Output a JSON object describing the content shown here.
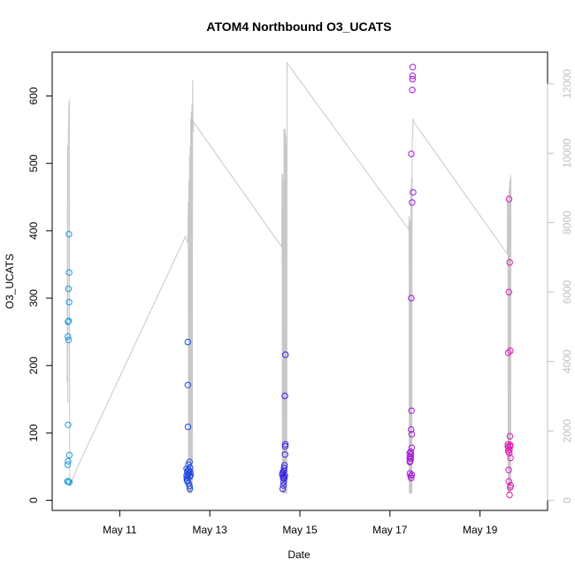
{
  "chart_data": {
    "type": "scatter",
    "title": "ATOM4 Northbound O3_UCATS",
    "xlabel": "Date",
    "ylabel": "O3_UCATS",
    "x_ticks": [
      "May 11",
      "May 13",
      "May 15",
      "May 17",
      "May 19"
    ],
    "y_ticks": [
      "0",
      "100",
      "200",
      "300",
      "400",
      "500",
      "600"
    ],
    "y2_ticks": [
      "0",
      "2000",
      "4000",
      "6000",
      "8000",
      "10000",
      "12000"
    ],
    "xlim": [
      "2018-05-09T12:00",
      "2018-05-20T12:00"
    ],
    "ylim": [
      -15,
      665
    ],
    "y2lim": [
      -290,
      12910
    ],
    "grid": false,
    "legend": "none",
    "colors": {
      "flight_path": "#c8c8c8",
      "right_axis": "#bfbfbf",
      "point_ramp": [
        "#1e9be0",
        "#1f4fdc",
        "#3a1fe6",
        "#9a18e0",
        "#e01ab6"
      ]
    },
    "series": [
      {
        "role": "altitude (right axis)",
        "points": [
          [
            "2018-05-09T20:00",
            3400
          ],
          [
            "2018-05-09T20:10",
            10200
          ],
          [
            "2018-05-09T20:20",
            2800
          ],
          [
            "2018-05-09T20:35",
            10400
          ],
          [
            "2018-05-09T20:50",
            11300
          ],
          [
            "2018-05-09T21:05",
            11550
          ],
          [
            "2018-05-09T21:20",
            400
          ],
          [
            "2018-05-10T01:00",
            900
          ],
          [
            "2018-05-12T11:00",
            7600
          ],
          [
            "2018-05-12T12:20",
            7400
          ],
          [
            "2018-05-12T12:30",
            8600
          ],
          [
            "2018-05-12T12:40",
            200
          ],
          [
            "2018-05-12T12:50",
            9200
          ],
          [
            "2018-05-12T13:00",
            200
          ],
          [
            "2018-05-12T13:10",
            9900
          ],
          [
            "2018-05-12T13:20",
            200
          ],
          [
            "2018-05-12T13:30",
            10200
          ],
          [
            "2018-05-12T13:40",
            200
          ],
          [
            "2018-05-12T13:50",
            11000
          ],
          [
            "2018-05-12T14:00",
            200
          ],
          [
            "2018-05-12T14:10",
            11200
          ],
          [
            "2018-05-12T14:20",
            200
          ],
          [
            "2018-05-12T14:30",
            11400
          ],
          [
            "2018-05-12T14:40",
            300
          ],
          [
            "2018-05-12T14:50",
            12100
          ],
          [
            "2018-05-12T15:05",
            10600
          ],
          [
            "2018-05-12T15:20",
            10900
          ],
          [
            "2018-05-14T14:20",
            7300
          ],
          [
            "2018-05-14T14:30",
            9400
          ],
          [
            "2018-05-14T14:40",
            200
          ],
          [
            "2018-05-14T14:50",
            9400
          ],
          [
            "2018-05-14T15:00",
            200
          ],
          [
            "2018-05-14T15:10",
            9200
          ],
          [
            "2018-05-14T15:20",
            200
          ],
          [
            "2018-05-14T15:30",
            10700
          ],
          [
            "2018-05-14T15:40",
            200
          ],
          [
            "2018-05-14T15:50",
            10700
          ],
          [
            "2018-05-14T16:00",
            200
          ],
          [
            "2018-05-14T16:10",
            10700
          ],
          [
            "2018-05-14T16:20",
            200
          ],
          [
            "2018-05-14T16:30",
            10500
          ],
          [
            "2018-05-14T16:40",
            200
          ],
          [
            "2018-05-14T16:50",
            10300
          ],
          [
            "2018-05-14T17:00",
            200
          ],
          [
            "2018-05-14T17:10",
            12600
          ],
          [
            "2018-05-17T10:00",
            7800
          ],
          [
            "2018-05-17T10:10",
            8200
          ],
          [
            "2018-05-17T10:20",
            200
          ],
          [
            "2018-05-17T10:30",
            8100
          ],
          [
            "2018-05-17T10:40",
            200
          ],
          [
            "2018-05-17T10:50",
            8000
          ],
          [
            "2018-05-17T11:00",
            200
          ],
          [
            "2018-05-17T11:10",
            9000
          ],
          [
            "2018-05-17T11:20",
            200
          ],
          [
            "2018-05-17T11:30",
            9300
          ],
          [
            "2018-05-17T11:40",
            200
          ],
          [
            "2018-05-17T11:50",
            10300
          ],
          [
            "2018-05-17T12:05",
            10500
          ],
          [
            "2018-05-17T12:20",
            11000
          ],
          [
            "2018-05-17T12:40",
            10900
          ],
          [
            "2018-05-19T14:30",
            7100
          ],
          [
            "2018-05-19T14:40",
            8800
          ],
          [
            "2018-05-19T14:50",
            8500
          ],
          [
            "2018-05-19T15:00",
            200
          ],
          [
            "2018-05-19T15:10",
            8600
          ],
          [
            "2018-05-19T15:20",
            200
          ],
          [
            "2018-05-19T15:30",
            9000
          ],
          [
            "2018-05-19T15:40",
            200
          ],
          [
            "2018-05-19T15:50",
            9200
          ],
          [
            "2018-05-19T16:00",
            200
          ],
          [
            "2018-05-19T16:10",
            9400
          ],
          [
            "2018-05-19T16:20",
            300
          ],
          [
            "2018-05-19T16:30",
            9300
          ]
        ]
      },
      {
        "role": "O3_UCATS (left axis)",
        "points": [
          [
            "2018-05-09T20:10",
            28
          ],
          [
            "2018-05-09T20:15",
            53
          ],
          [
            "2018-05-09T20:20",
            243
          ],
          [
            "2018-05-09T20:25",
            265
          ],
          [
            "2018-05-09T20:30",
            58
          ],
          [
            "2018-05-09T20:30",
            28
          ],
          [
            "2018-05-09T20:30",
            112
          ],
          [
            "2018-05-09T20:40",
            314
          ],
          [
            "2018-05-09T20:45",
            238
          ],
          [
            "2018-05-09T20:45",
            266
          ],
          [
            "2018-05-09T20:55",
            395
          ],
          [
            "2018-05-09T21:00",
            338
          ],
          [
            "2018-05-09T21:00",
            294
          ],
          [
            "2018-05-09T21:10",
            67
          ],
          [
            "2018-05-09T21:10",
            27
          ],
          [
            "2018-05-12T11:40",
            47
          ],
          [
            "2018-05-12T11:40",
            37
          ],
          [
            "2018-05-12T11:45",
            33
          ],
          [
            "2018-05-12T11:50",
            30
          ],
          [
            "2018-05-12T12:00",
            42
          ],
          [
            "2018-05-12T12:05",
            28
          ],
          [
            "2018-05-12T12:10",
            35
          ],
          [
            "2018-05-12T12:15",
            235
          ],
          [
            "2018-05-12T12:15",
            171
          ],
          [
            "2018-05-12T12:25",
            109
          ],
          [
            "2018-05-12T12:25",
            45
          ],
          [
            "2018-05-12T12:30",
            38
          ],
          [
            "2018-05-12T12:40",
            53
          ],
          [
            "2018-05-12T12:45",
            25
          ],
          [
            "2018-05-12T12:50",
            40
          ],
          [
            "2018-05-12T13:00",
            44
          ],
          [
            "2018-05-12T13:10",
            57
          ],
          [
            "2018-05-12T13:10",
            21
          ],
          [
            "2018-05-12T13:20",
            35
          ],
          [
            "2018-05-12T13:20",
            17
          ],
          [
            "2018-05-12T13:30",
            48
          ],
          [
            "2018-05-12T13:35",
            42
          ],
          [
            "2018-05-12T13:45",
            37
          ],
          [
            "2018-05-14T14:40",
            38
          ],
          [
            "2018-05-14T14:45",
            40
          ],
          [
            "2018-05-14T14:50",
            17
          ],
          [
            "2018-05-14T15:00",
            42
          ],
          [
            "2018-05-14T15:05",
            33
          ],
          [
            "2018-05-14T15:10",
            22
          ],
          [
            "2018-05-14T15:20",
            27
          ],
          [
            "2018-05-14T15:25",
            35
          ],
          [
            "2018-05-14T15:30",
            44
          ],
          [
            "2018-05-14T15:35",
            48
          ],
          [
            "2018-05-14T15:40",
            32
          ],
          [
            "2018-05-14T15:50",
            52
          ],
          [
            "2018-05-14T15:55",
            37
          ],
          [
            "2018-05-14T16:00",
            155
          ],
          [
            "2018-05-14T16:05",
            68
          ],
          [
            "2018-05-14T16:10",
            80
          ],
          [
            "2018-05-14T16:15",
            83
          ],
          [
            "2018-05-14T16:20",
            216
          ],
          [
            "2018-05-17T10:30",
            70
          ],
          [
            "2018-05-17T10:30",
            62
          ],
          [
            "2018-05-17T10:35",
            57
          ],
          [
            "2018-05-17T10:40",
            40
          ],
          [
            "2018-05-17T10:45",
            65
          ],
          [
            "2018-05-17T10:50",
            58
          ],
          [
            "2018-05-17T11:00",
            72
          ],
          [
            "2018-05-17T11:00",
            36
          ],
          [
            "2018-05-17T11:10",
            68
          ],
          [
            "2018-05-17T11:10",
            62
          ],
          [
            "2018-05-17T11:15",
            105
          ],
          [
            "2018-05-17T11:20",
            33
          ],
          [
            "2018-05-17T11:20",
            300
          ],
          [
            "2018-05-17T11:25",
            514
          ],
          [
            "2018-05-17T11:30",
            133
          ],
          [
            "2018-05-17T11:35",
            98
          ],
          [
            "2018-05-17T11:35",
            78
          ],
          [
            "2018-05-17T11:40",
            38
          ],
          [
            "2018-05-17T11:50",
            442
          ],
          [
            "2018-05-17T11:55",
            609
          ],
          [
            "2018-05-17T12:00",
            625
          ],
          [
            "2018-05-17T12:05",
            630
          ],
          [
            "2018-05-17T12:10",
            643
          ],
          [
            "2018-05-17T12:20",
            457
          ],
          [
            "2018-05-19T14:50",
            80
          ],
          [
            "2018-05-19T14:55",
            83
          ],
          [
            "2018-05-19T15:00",
            73
          ],
          [
            "2018-05-19T15:05",
            219
          ],
          [
            "2018-05-19T15:10",
            78
          ],
          [
            "2018-05-19T15:15",
            45
          ],
          [
            "2018-05-19T15:20",
            28
          ],
          [
            "2018-05-19T15:25",
            309
          ],
          [
            "2018-05-19T15:30",
            447
          ],
          [
            "2018-05-19T15:35",
            70
          ],
          [
            "2018-05-19T15:40",
            75
          ],
          [
            "2018-05-19T15:45",
            8
          ],
          [
            "2018-05-19T15:50",
            353
          ],
          [
            "2018-05-19T15:55",
            95
          ],
          [
            "2018-05-19T16:00",
            19
          ],
          [
            "2018-05-19T16:00",
            80
          ],
          [
            "2018-05-19T16:10",
            222
          ],
          [
            "2018-05-19T16:10",
            82
          ],
          [
            "2018-05-19T16:15",
            63
          ],
          [
            "2018-05-19T16:20",
            22
          ]
        ]
      }
    ]
  }
}
